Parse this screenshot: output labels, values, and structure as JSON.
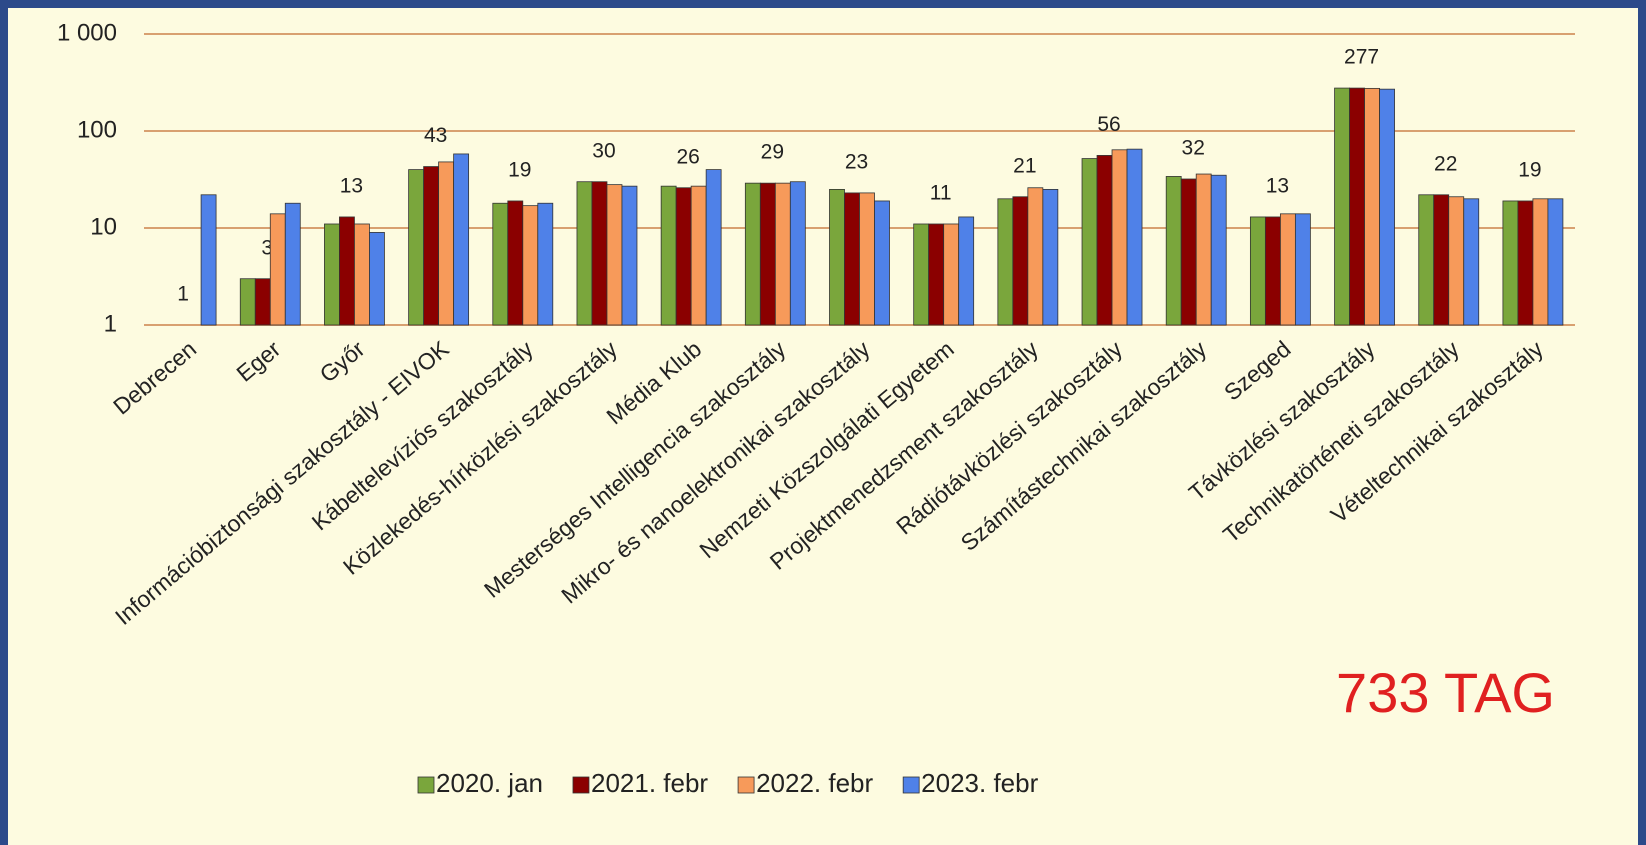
{
  "chart_data": {
    "type": "bar",
    "yscale": "log",
    "grid": true,
    "legend": "bottom",
    "annotation": "733 TAG",
    "categories": [
      "Debrecen",
      "Eger",
      "Győr",
      "Információbiztonsági szakosztály - EIVOK",
      "Kábeltelevíziós szakosztály",
      "Közlekedés-hírközlési szakosztály",
      "Média Klub",
      "Mesterséges Intelligencia szakosztály",
      "Mikro- és nanoelektronikai szakosztály",
      "Nemzeti Közszolgálati Egyetem",
      "Projektmenedzsment szakosztály",
      "Rádiótávközlési szakosztály",
      "Számítástechnikai szakosztály",
      "Szeged",
      "Távközlési szakosztály",
      "Technikatörténeti szakosztály",
      "Vételtechnikai szakosztály"
    ],
    "series": [
      {
        "name": "2020. jan",
        "color": "#7aa63c",
        "values": [
          null,
          3,
          11,
          40,
          18,
          30,
          27,
          29,
          25,
          11,
          20,
          52,
          34,
          13,
          277,
          22,
          19
        ]
      },
      {
        "name": "2021. febr",
        "color": "#8b0000",
        "values": [
          1,
          3,
          13,
          43,
          19,
          30,
          26,
          29,
          23,
          11,
          21,
          56,
          32,
          13,
          277,
          22,
          19
        ],
        "labeled": true
      },
      {
        "name": "2022. febr",
        "color": "#f79a5a",
        "values": [
          null,
          14,
          11,
          48,
          17,
          28,
          27,
          29,
          23,
          11,
          26,
          64,
          36,
          14,
          275,
          21,
          20
        ]
      },
      {
        "name": "2023. febr",
        "color": "#4f81e8",
        "values": [
          22,
          18,
          9,
          58,
          18,
          27,
          40,
          30,
          19,
          13,
          25,
          65,
          35,
          14,
          270,
          20,
          20
        ]
      }
    ],
    "ylim": [
      1,
      1000
    ],
    "yticks": [
      1,
      10,
      100,
      {
        "value": 1000,
        "label": "1 000"
      }
    ]
  }
}
